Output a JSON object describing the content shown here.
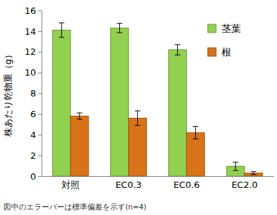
{
  "chart_data": {
    "type": "bar",
    "y_label": "株あたり乾物重（g）",
    "categories": [
      "対照",
      "EC0.3",
      "EC0.6",
      "EC2.0"
    ],
    "series": [
      {
        "name": "茎葉",
        "color": "#92d050",
        "values": [
          14.1,
          14.3,
          12.2,
          0.95
        ],
        "errors": [
          0.7,
          0.45,
          0.5,
          0.4
        ]
      },
      {
        "name": "根",
        "color": "#d9731a",
        "values": [
          5.8,
          5.6,
          4.2,
          0.3
        ],
        "errors": [
          0.3,
          0.7,
          0.6,
          0.15
        ]
      }
    ],
    "ylim": [
      0,
      16
    ],
    "yticks": [
      0,
      2,
      4,
      6,
      8,
      10,
      12,
      14,
      16
    ],
    "grid": false,
    "legend": "upper right",
    "annotations": [
      "図中のエラーバーは標準偏差を示す(n=4)"
    ]
  }
}
